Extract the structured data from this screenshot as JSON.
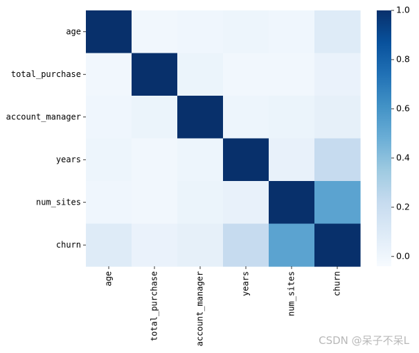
{
  "chart_data": {
    "type": "heatmap",
    "title": "",
    "xlabel": "",
    "ylabel": "",
    "rows": [
      "age",
      "total_purchase",
      "account_manager",
      "years",
      "num_sites",
      "churn"
    ],
    "columns": [
      "age",
      "total_purchase",
      "account_manager",
      "years",
      "num_sites",
      "churn"
    ],
    "values": [
      [
        1.0,
        -0.01,
        0.0,
        0.01,
        0.0,
        0.09
      ],
      [
        -0.01,
        1.0,
        0.02,
        -0.01,
        -0.01,
        0.03
      ],
      [
        0.0,
        0.02,
        1.0,
        0.01,
        0.02,
        0.05
      ],
      [
        0.01,
        -0.01,
        0.01,
        1.0,
        0.04,
        0.22
      ],
      [
        0.0,
        -0.01,
        0.02,
        0.04,
        1.0,
        0.53
      ],
      [
        0.09,
        0.03,
        0.05,
        0.22,
        0.53,
        1.0
      ]
    ],
    "colormap": "Blues",
    "colorbar": {
      "range": [
        -0.04,
        1.0
      ],
      "ticks": [
        0.0,
        0.2,
        0.4,
        0.6,
        0.8,
        1.0
      ],
      "tick_labels": [
        "0.0",
        "0.2",
        "0.4",
        "0.6",
        "0.8",
        "1.0"
      ]
    }
  },
  "watermark": "CSDN @呆子不呆L"
}
